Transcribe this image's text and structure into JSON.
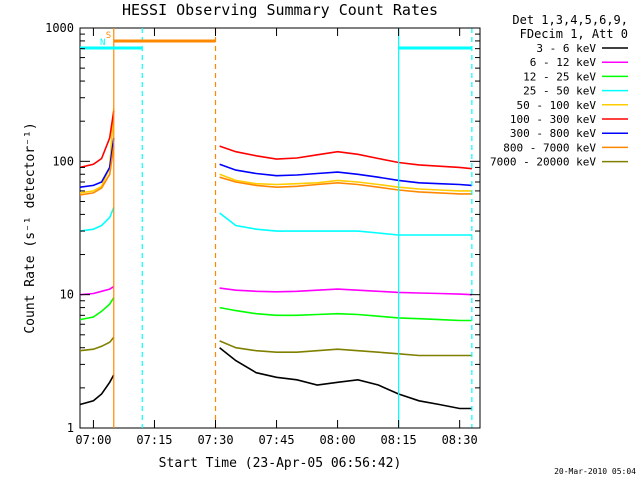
{
  "chart_data": {
    "type": "line",
    "title": "HESSI Observing Summary Count Rates",
    "xlabel": "Start Time (23-Apr-05 06:56:42)",
    "ylabel": "Count Rate (s⁻¹ detector⁻¹)",
    "yscale": "log",
    "ylim": [
      1,
      1000
    ],
    "xlim": [
      "06:56:42",
      "08:35:00"
    ],
    "x_ticks": [
      "07:00",
      "07:15",
      "07:30",
      "07:45",
      "08:00",
      "08:15",
      "08:30"
    ],
    "y_ticks": [
      "1",
      "10",
      "100",
      "1000"
    ],
    "legend_header": [
      "Det 1,3,4,5,6,9,",
      "FDecim 1, Att 0"
    ],
    "legend_position": "right",
    "timestamp": "20-Mar-2010 05:04",
    "x_times": [
      "06:56:42",
      "07:00",
      "07:02",
      "07:04",
      "07:05",
      "07:31",
      "07:35",
      "07:40",
      "07:45",
      "07:50",
      "07:55",
      "08:00",
      "08:05",
      "08:10",
      "08:15",
      "08:20",
      "08:25",
      "08:30",
      "08:33"
    ],
    "series": [
      {
        "name": "3 - 6 keV",
        "color": "#000000",
        "values": [
          1.5,
          1.6,
          1.8,
          2.2,
          2.5,
          4.0,
          3.2,
          2.6,
          2.4,
          2.3,
          2.1,
          2.2,
          2.3,
          2.1,
          1.8,
          1.6,
          1.5,
          1.4,
          1.4
        ]
      },
      {
        "name": "6 - 12 keV",
        "color": "#ff00ff",
        "values": [
          10,
          10.2,
          10.6,
          11,
          11.5,
          11.2,
          10.8,
          10.6,
          10.5,
          10.6,
          10.8,
          11,
          10.8,
          10.6,
          10.4,
          10.3,
          10.2,
          10.1,
          10
        ]
      },
      {
        "name": "12 - 25 keV",
        "color": "#00ff00",
        "values": [
          6.5,
          6.8,
          7.5,
          8.5,
          9.5,
          8.0,
          7.6,
          7.2,
          7.0,
          7.0,
          7.1,
          7.2,
          7.1,
          6.9,
          6.7,
          6.6,
          6.5,
          6.4,
          6.4
        ]
      },
      {
        "name": "25 - 50 keV",
        "color": "#00ffff",
        "values": [
          30,
          31,
          33,
          38,
          45,
          41,
          33,
          31,
          30,
          30,
          30,
          30,
          30,
          29,
          28,
          28,
          28,
          28,
          28
        ]
      },
      {
        "name": "50 - 100 keV",
        "color": "#ffcc00",
        "values": [
          58,
          60,
          65,
          90,
          250,
          80,
          72,
          68,
          67,
          68,
          69,
          72,
          70,
          67,
          64,
          62,
          61,
          60,
          60
        ]
      },
      {
        "name": "100 - 300 keV",
        "color": "#ff0000",
        "values": [
          90,
          95,
          105,
          150,
          240,
          130,
          118,
          110,
          104,
          106,
          112,
          118,
          113,
          105,
          98,
          94,
          92,
          90,
          88
        ]
      },
      {
        "name": "300 - 800 keV",
        "color": "#0000ff",
        "values": [
          64,
          66,
          70,
          90,
          150,
          95,
          86,
          81,
          78,
          79,
          81,
          83,
          80,
          76,
          72,
          69,
          68,
          67,
          66
        ]
      },
      {
        "name": "800 - 7000 keV",
        "color": "#ff8800",
        "values": [
          56,
          58,
          63,
          80,
          130,
          76,
          70,
          66,
          64,
          65,
          67,
          69,
          67,
          64,
          61,
          59,
          58,
          57,
          57
        ]
      },
      {
        "name": "7000 - 20000 keV",
        "color": "#808000",
        "values": [
          3.8,
          3.9,
          4.1,
          4.4,
          4.8,
          4.5,
          4.0,
          3.8,
          3.7,
          3.7,
          3.8,
          3.9,
          3.8,
          3.7,
          3.6,
          3.5,
          3.5,
          3.5,
          3.5
        ]
      }
    ],
    "annotations": [
      {
        "label": "S",
        "color": "#ff8800",
        "style": "solid-bar",
        "x_start": "07:05",
        "x_end": "07:30"
      },
      {
        "label": "N",
        "color": "#00ffff",
        "style": "solid-bar",
        "x_start": "06:56:42",
        "x_end": "07:12"
      },
      {
        "label": "",
        "color": "#00ffff",
        "style": "solid-bar",
        "x_start": "08:15",
        "x_end": "08:33"
      }
    ],
    "markers": [
      {
        "time": "07:05",
        "color": "#ff8800",
        "dash": false
      },
      {
        "time": "07:30",
        "color": "#ff8800",
        "dash": true
      },
      {
        "time": "07:12",
        "color": "#00ffff",
        "dash": true
      },
      {
        "time": "08:15",
        "color": "#00ffff",
        "dash": false
      },
      {
        "time": "08:33",
        "color": "#00ffff",
        "dash": true
      }
    ],
    "data_gap": [
      "07:05",
      "07:31"
    ],
    "grid": false
  }
}
